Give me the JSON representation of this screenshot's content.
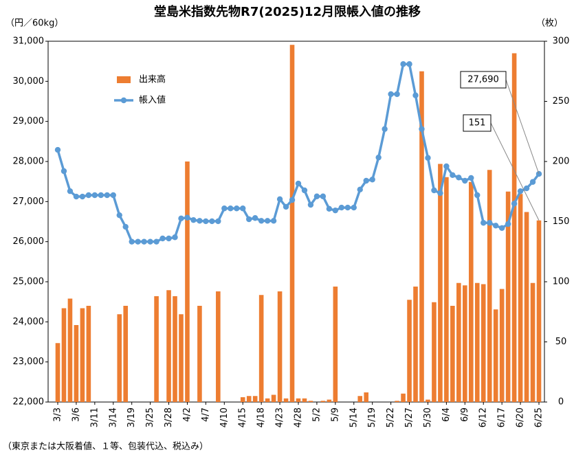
{
  "chart_data": {
    "type": "bar-line",
    "title": "堂島米指数先物R7(2025)12月限帳入値の推移",
    "y_label": "（円／60kg）",
    "y2_label": "（枚）",
    "footnote": "（東京または大阪着値、１等、包装代込、税込み）",
    "categories": [
      "3/3",
      null,
      null,
      "3/6",
      null,
      null,
      "3/11",
      null,
      null,
      "3/14",
      null,
      null,
      "3/19",
      null,
      null,
      "3/25",
      null,
      null,
      "3/28",
      null,
      null,
      "4/2",
      null,
      null,
      "4/7",
      null,
      null,
      "4/10",
      null,
      null,
      "4/15",
      null,
      null,
      "4/18",
      null,
      null,
      "4/23",
      null,
      null,
      "4/28",
      null,
      null,
      "5/2",
      null,
      null,
      "5/9",
      null,
      null,
      "5/14",
      null,
      null,
      "5/19",
      null,
      null,
      "5/22",
      null,
      null,
      "5/27",
      null,
      null,
      "5/30",
      null,
      null,
      "6/4",
      null,
      null,
      "6/9",
      null,
      null,
      "6/12",
      null,
      null,
      "6/17",
      null,
      null,
      "6/20",
      null,
      null,
      "6/25"
    ],
    "series": [
      {
        "name": "出来高",
        "type": "bar",
        "axis": "y2",
        "color": "#ed7d31",
        "values": [
          49,
          78,
          86,
          64,
          78,
          80,
          0,
          0,
          0,
          0,
          73,
          80,
          0,
          0,
          0,
          0,
          88,
          0,
          93,
          88,
          73,
          200,
          0,
          80,
          0,
          0,
          92,
          0,
          0,
          0,
          4,
          5,
          5,
          89,
          3,
          6,
          92,
          3,
          297,
          3,
          3,
          1,
          0,
          1,
          2,
          96,
          0,
          0,
          0,
          5,
          8,
          0,
          0,
          0,
          0,
          1,
          7,
          85,
          96,
          275,
          2,
          83,
          198,
          187,
          80,
          99,
          97,
          183,
          99,
          98,
          193,
          77,
          94,
          175,
          290,
          173,
          158,
          99,
          151
        ]
      },
      {
        "name": "帳入値",
        "type": "line",
        "axis": "y",
        "color": "#5b9bd5",
        "values": [
          28290,
          27760,
          27260,
          27125,
          27125,
          27160,
          27160,
          27160,
          27160,
          27160,
          26660,
          26370,
          26000,
          26000,
          26000,
          26000,
          26000,
          26080,
          26080,
          26110,
          26580,
          26600,
          26540,
          26520,
          26510,
          26510,
          26510,
          26830,
          26830,
          26830,
          26830,
          26560,
          26590,
          26520,
          26520,
          26520,
          27060,
          26870,
          27040,
          27450,
          27280,
          26920,
          27130,
          27130,
          26820,
          26780,
          26850,
          26850,
          26850,
          27300,
          27520,
          27550,
          28100,
          28810,
          29680,
          29680,
          30430,
          30430,
          29650,
          28810,
          28090,
          27280,
          27210,
          27880,
          27660,
          27600,
          27520,
          27590,
          27160,
          26470,
          26470,
          26400,
          26340,
          26440,
          26950,
          27260,
          27330,
          27490,
          27690
        ]
      }
    ],
    "annotations": [
      "27,690",
      "151"
    ],
    "ylim": [
      22000,
      31000
    ],
    "yticks": [
      {
        "value": 22000,
        "label": "22,000"
      },
      {
        "value": 23000,
        "label": "23,000"
      },
      {
        "value": 24000,
        "label": "24,000"
      },
      {
        "value": 25000,
        "label": "25,000"
      },
      {
        "value": 26000,
        "label": "26,000"
      },
      {
        "value": 27000,
        "label": "27,000"
      },
      {
        "value": 28000,
        "label": "28,000"
      },
      {
        "value": 29000,
        "label": "29,000"
      },
      {
        "value": 30000,
        "label": "30,000"
      },
      {
        "value": 31000,
        "label": "31,000"
      }
    ],
    "y2lim": [
      0,
      300
    ],
    "y2ticks": [
      0,
      50,
      100,
      150,
      200,
      250,
      300
    ],
    "grid": false,
    "legend": "upper-left"
  }
}
